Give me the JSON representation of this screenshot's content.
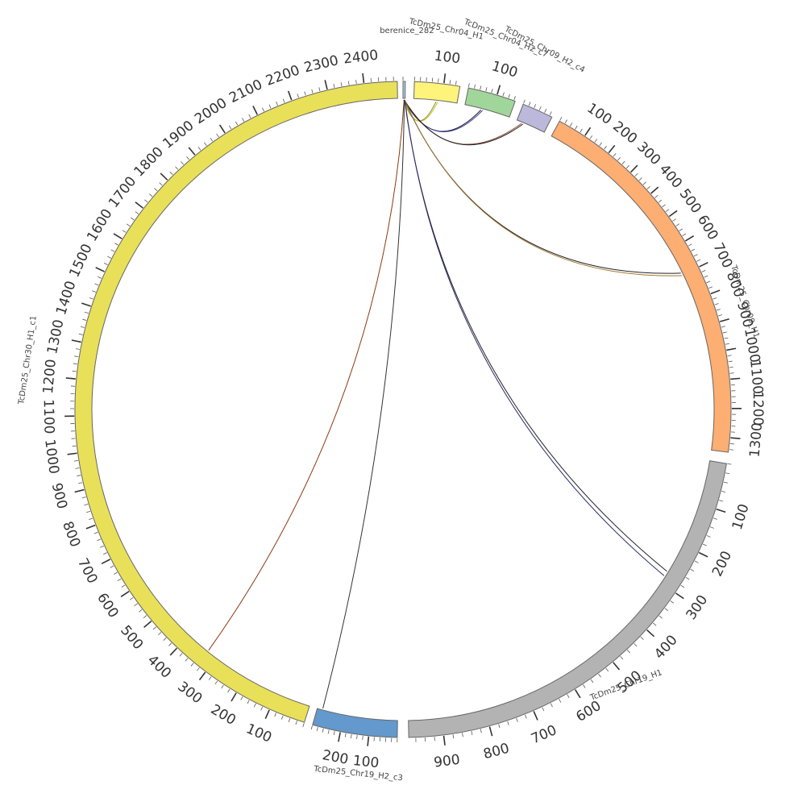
{
  "figure": {
    "type": "circos",
    "tick_step": 100,
    "chromosomes": [
      {
        "id": "berenice_282",
        "label": "berenice_282",
        "color": "#a6cee3",
        "length": 8,
        "tick_labels": [],
        "label_rotation": 0
      },
      {
        "id": "chr04_h1",
        "label": "TcDm25_Chr04_H1",
        "color": "#fff47b",
        "length": 155,
        "tick_labels": [
          "100"
        ],
        "label_rotation": 12
      },
      {
        "id": "chr04_h2_c7",
        "label": "TcDm25_Chr04_H2_c7",
        "color": "#a1d69a",
        "length": 165,
        "tick_labels": [
          "100"
        ],
        "label_rotation": 22
      },
      {
        "id": "chr09_h2_c4",
        "label": "TcDm25_Chr09_H2_c4",
        "color": "#bcb8db",
        "length": 110,
        "tick_labels": [],
        "label_rotation": 28
      },
      {
        "id": "chr09_h1",
        "label": "TcDm25_Chr09_H1",
        "color": "#fdae72",
        "length": 1350,
        "tick_labels": [
          "100",
          "200",
          "300",
          "400",
          "500",
          "600",
          "700",
          "800",
          "900",
          "1000",
          "1100",
          "1200",
          "1300"
        ],
        "label_rotation": 72
      },
      {
        "id": "chr19_h1",
        "label": "TcDm25_Chr19_H1",
        "color": "#b3b3b3",
        "length": 975,
        "tick_labels": [
          "100",
          "200",
          "300",
          "400",
          "500",
          "600",
          "700",
          "800",
          "900"
        ],
        "label_rotation": -20
      },
      {
        "id": "chr19_h2_c3",
        "label": "TcDm25_Chr19_H2_c3",
        "color": "#6399cc",
        "length": 300,
        "tick_labels": [
          "100",
          "200"
        ],
        "label_rotation": 6
      },
      {
        "id": "chr30_h1_c1",
        "label": "TcDm25_Chr30_H1_c1",
        "color": "#e9e05a",
        "length": 2490,
        "tick_labels": [
          "100",
          "200",
          "300",
          "400",
          "500",
          "600",
          "700",
          "800",
          "900",
          "1000",
          "1100",
          "1200",
          "1300",
          "1400",
          "1500",
          "1600",
          "1700",
          "1800",
          "1900",
          "2000",
          "2100",
          "2200",
          "2300",
          "2400"
        ],
        "label_rotation": -82
      }
    ],
    "links": [
      {
        "from": "berenice_282",
        "from_pos": 2,
        "to": "chr04_h1",
        "to_pos": 80,
        "color": "#8a8a1a"
      },
      {
        "from": "berenice_282",
        "from_pos": 3,
        "to": "chr04_h1",
        "to_pos": 86,
        "color": "#c8c030"
      },
      {
        "from": "berenice_282",
        "from_pos": 3,
        "to": "chr04_h2_c7",
        "to_pos": 60,
        "color": "#1b1b4d"
      },
      {
        "from": "berenice_282",
        "from_pos": 4,
        "to": "chr04_h2_c7",
        "to_pos": 66,
        "color": "#3a3a8a"
      },
      {
        "from": "berenice_282",
        "from_pos": 4,
        "to": "chr09_h2_c4",
        "to_pos": 20,
        "color": "#8c4a2a"
      },
      {
        "from": "berenice_282",
        "from_pos": 5,
        "to": "chr09_h2_c4",
        "to_pos": 26,
        "color": "#222222"
      },
      {
        "from": "berenice_282",
        "from_pos": 5,
        "to": "chr09_h1",
        "to_pos": 692,
        "color": "#222222"
      },
      {
        "from": "berenice_282",
        "from_pos": 6,
        "to": "chr09_h1",
        "to_pos": 702,
        "color": "#a0762e"
      },
      {
        "from": "berenice_282",
        "from_pos": 6,
        "to": "chr19_h1",
        "to_pos": 270,
        "color": "#222222"
      },
      {
        "from": "berenice_282",
        "from_pos": 7,
        "to": "chr19_h1",
        "to_pos": 282,
        "color": "#2a2a6a"
      },
      {
        "from": "berenice_282",
        "from_pos": 5,
        "to": "chr19_h2_c3",
        "to_pos": 280,
        "color": "#333333"
      },
      {
        "from": "berenice_282",
        "from_pos": 4,
        "to": "chr30_h1_c1",
        "to_pos": 330,
        "color": "#8c3a10"
      }
    ]
  }
}
